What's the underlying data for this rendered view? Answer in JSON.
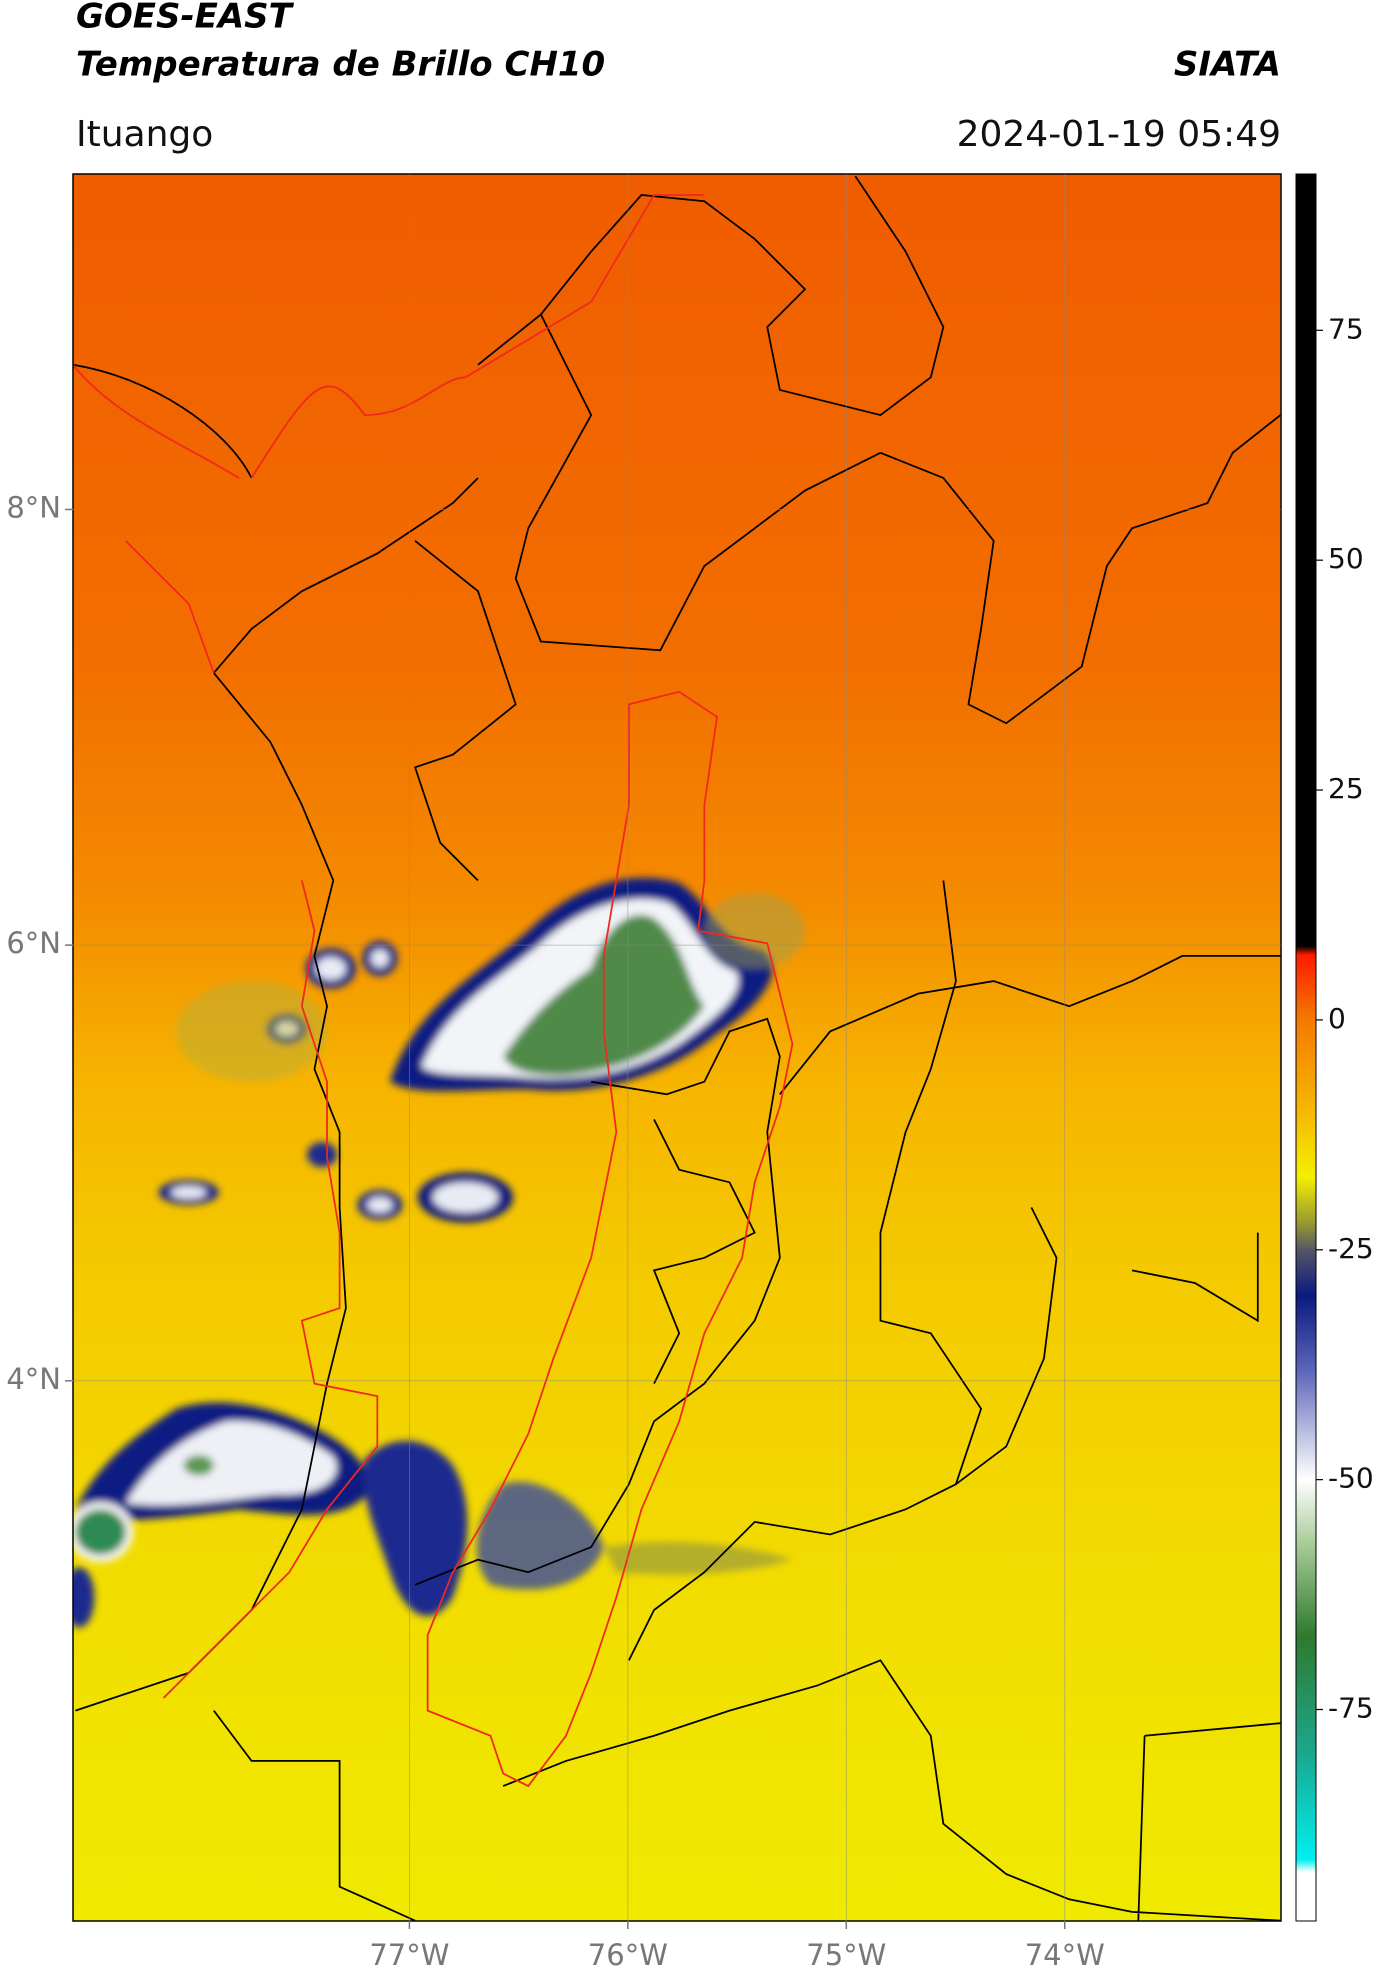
{
  "header": {
    "title": "GOES-EAST",
    "subtitle": "Temperatura de Brillo CH10",
    "source": "SIATA",
    "location": "Ituango",
    "datetime": "2024-01-19 05:49"
  },
  "map": {
    "lonlim": [
      -78.54,
      -73.01
    ],
    "latlim": [
      1.52,
      9.54
    ],
    "grid": true,
    "lat_ticks": [
      {
        "value": 8,
        "label": "8°N"
      },
      {
        "value": 6,
        "label": "6°N"
      },
      {
        "value": 4,
        "label": "4°N"
      }
    ],
    "lon_ticks": [
      {
        "value": -77,
        "label": "77°W"
      },
      {
        "value": -76,
        "label": "76°W"
      },
      {
        "value": -75,
        "label": "75°W"
      },
      {
        "value": -74,
        "label": "74°W"
      }
    ]
  },
  "colorbar": {
    "range": [
      -98,
      92
    ],
    "ticks": [
      75,
      50,
      25,
      0,
      -25,
      -50,
      -75
    ]
  }
}
